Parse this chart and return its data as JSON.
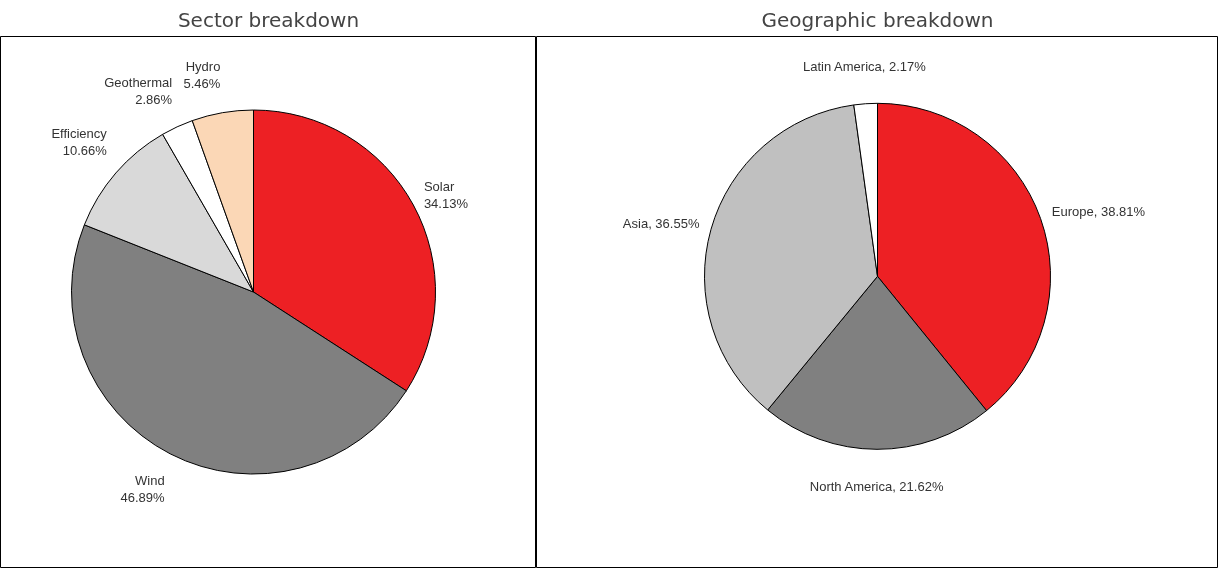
{
  "chart_data": [
    {
      "type": "pie",
      "title": "Sector breakdown",
      "categories": [
        "Solar",
        "Wind",
        "Efficiency",
        "Geothermal",
        "Hydro"
      ],
      "values": [
        34.13,
        46.89,
        10.66,
        2.86,
        5.46
      ],
      "colors": [
        "#ed2024",
        "#808080",
        "#d9d9d9",
        "#ffffff",
        "#fbd7b6"
      ],
      "value_labels": [
        "34.13%",
        "46.89%",
        "10.66%",
        "2.86%",
        "5.46%"
      ]
    },
    {
      "type": "pie",
      "title": "Geographic breakdown",
      "categories": [
        "Europe",
        "North America",
        "Asia",
        "Latin America"
      ],
      "values": [
        38.81,
        21.62,
        36.55,
        2.17
      ],
      "colors": [
        "#ed2024",
        "#808080",
        "#c0c0c0",
        "#ffffff"
      ],
      "value_labels": [
        "38.81%",
        "21.62%",
        "36.55%",
        "2.17%"
      ]
    }
  ]
}
